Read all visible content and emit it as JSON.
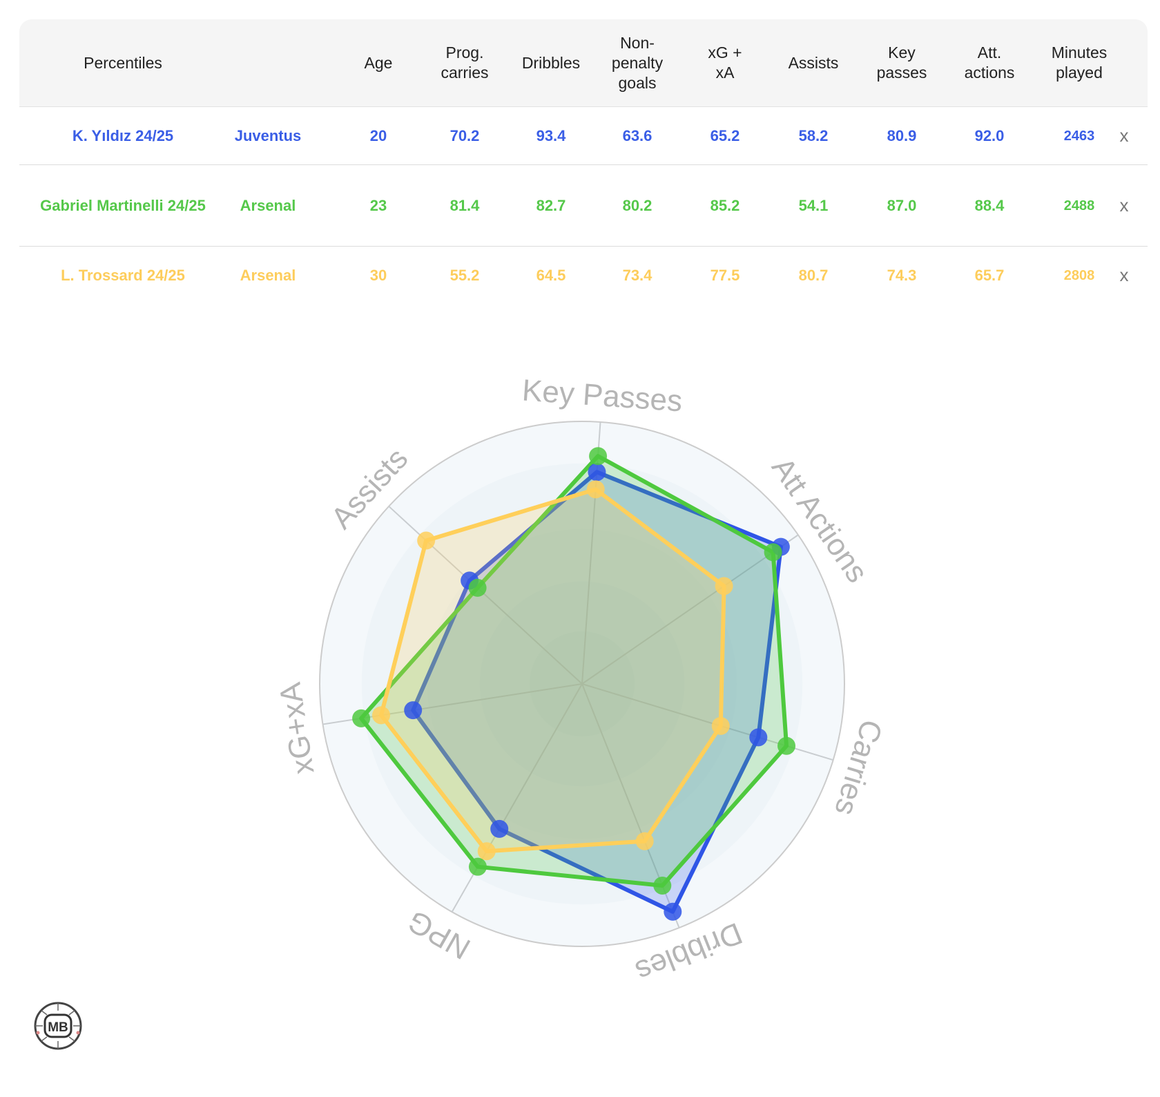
{
  "table": {
    "headers": {
      "name": "Percentiles",
      "age": "Age",
      "prog_carries": [
        "Prog.",
        "carries"
      ],
      "dribbles": "Dribbles",
      "npg": [
        "Non-",
        "penalty",
        "goals"
      ],
      "xgxa": [
        "xG +",
        "xA"
      ],
      "assists": "Assists",
      "key_passes": [
        "Key",
        "passes"
      ],
      "att_actions": [
        "Att.",
        "actions"
      ],
      "minutes": [
        "Minutes",
        "played"
      ]
    },
    "remove_label": "x",
    "rows": [
      {
        "name": "K. Yıldız 24/25",
        "team": "Juventus",
        "age": "20",
        "prog_carries": "70.2",
        "dribbles": "93.4",
        "npg": "63.6",
        "xgxa": "65.2",
        "assists": "58.2",
        "key_passes": "80.9",
        "att_actions": "92.0",
        "minutes": "2463",
        "color": "#3a5ee6"
      },
      {
        "name": "Gabriel Martinelli 24/25",
        "team": "Arsenal",
        "age": "23",
        "prog_carries": "81.4",
        "dribbles": "82.7",
        "npg": "80.2",
        "xgxa": "85.2",
        "assists": "54.1",
        "key_passes": "87.0",
        "att_actions": "88.4",
        "minutes": "2488",
        "color": "#55c84a"
      },
      {
        "name": "L. Trossard 24/25",
        "team": "Arsenal",
        "age": "30",
        "prog_carries": "55.2",
        "dribbles": "64.5",
        "npg": "73.4",
        "xgxa": "77.5",
        "assists": "80.7",
        "key_passes": "74.3",
        "att_actions": "65.7",
        "minutes": "2808",
        "color": "#fdcd5c"
      }
    ]
  },
  "chart_data": {
    "type": "radar",
    "axes": [
      "Key Passes",
      "Att Actions",
      "Carries",
      "Dribbles",
      "NPG",
      "xG+xA",
      "Assists"
    ],
    "range": [
      0,
      100
    ],
    "series": [
      {
        "name": "K. Yıldız 24/25",
        "color": "#2f55e6",
        "values": [
          80.9,
          92.0,
          70.2,
          93.4,
          63.6,
          65.2,
          58.2
        ]
      },
      {
        "name": "Gabriel Martinelli 24/25",
        "color": "#4ec93e",
        "values": [
          87.0,
          88.4,
          81.4,
          82.7,
          80.2,
          85.2,
          54.1
        ]
      },
      {
        "name": "L. Trossard 24/25",
        "color": "#ffcf5a",
        "values": [
          74.3,
          65.7,
          55.2,
          64.5,
          73.4,
          77.5,
          80.7
        ]
      }
    ]
  },
  "logo": {
    "text": "MB"
  }
}
